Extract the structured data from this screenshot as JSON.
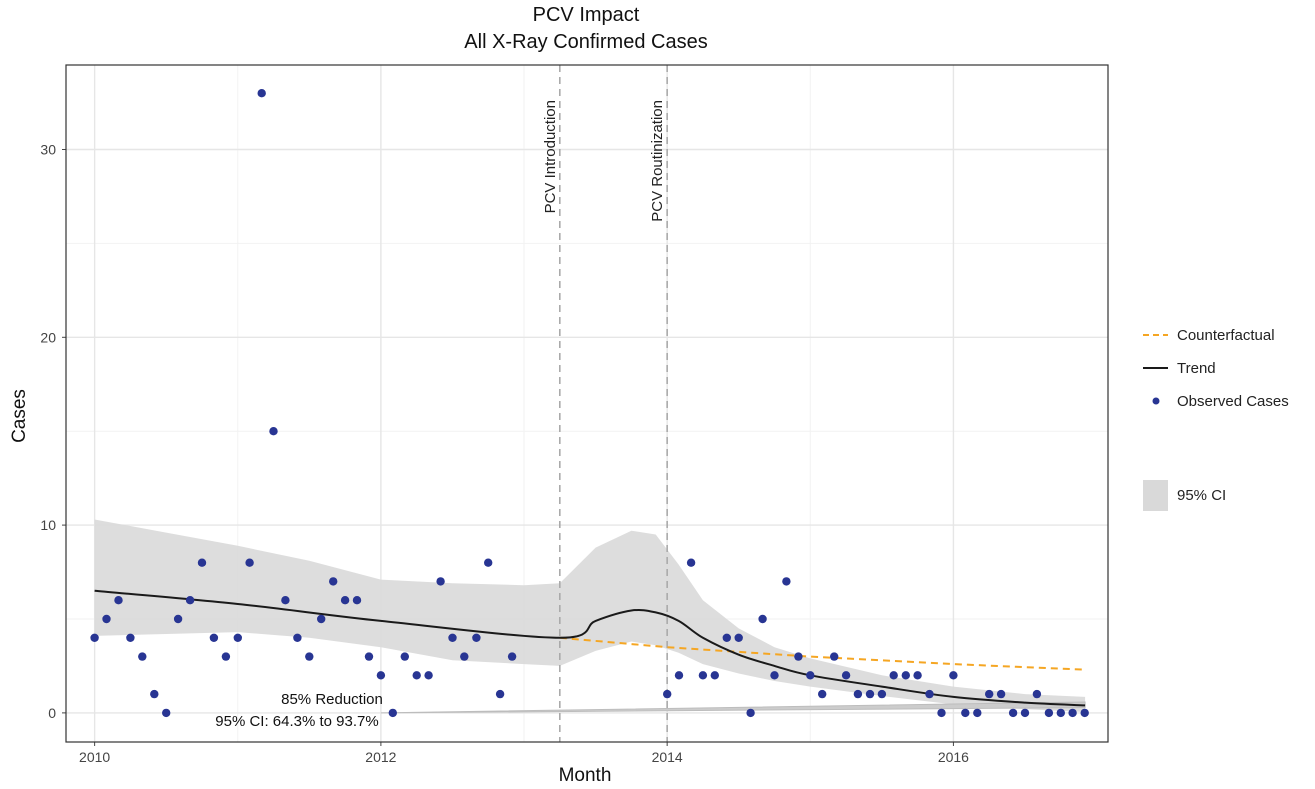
{
  "chart_data": {
    "type": "scatter",
    "title": "PCV Impact",
    "subtitle": "All X-Ray Confirmed Cases",
    "xlabel": "Month",
    "ylabel": "Cases",
    "xlim": [
      2009.8,
      2017.08
    ],
    "ylim": [
      -1.55,
      34.5
    ],
    "x_ticks": [
      2010,
      2012,
      2014,
      2016
    ],
    "y_ticks": [
      0,
      10,
      20,
      30
    ],
    "grid": true,
    "legend_position": "right",
    "vertical_lines": [
      {
        "x": 2013.25,
        "label": "PCV Introduction"
      },
      {
        "x": 2014.0,
        "label": "PCV Routinization"
      }
    ],
    "annotation": {
      "line1": "85% Reduction",
      "line2": "95% CI: 64.3% to 93.7%"
    },
    "legend": {
      "counterfactual": "Counterfactual",
      "trend": "Trend",
      "observed": "Observed Cases",
      "ci": "95% CI"
    },
    "colors": {
      "observed": "#283593",
      "trend": "#1a1a1a",
      "counterfactual": "#f5a623",
      "ci_band": "#d9d9d9",
      "vline": "#aaaaaa",
      "reduction_band": "#cccccc"
    },
    "observed_cases": [
      {
        "x": 2010.0,
        "y": 4
      },
      {
        "x": 2010.083,
        "y": 5
      },
      {
        "x": 2010.167,
        "y": 6
      },
      {
        "x": 2010.25,
        "y": 4
      },
      {
        "x": 2010.333,
        "y": 3
      },
      {
        "x": 2010.417,
        "y": 1
      },
      {
        "x": 2010.5,
        "y": 0
      },
      {
        "x": 2010.583,
        "y": 5
      },
      {
        "x": 2010.667,
        "y": 6
      },
      {
        "x": 2010.75,
        "y": 8
      },
      {
        "x": 2010.833,
        "y": 4
      },
      {
        "x": 2010.917,
        "y": 3
      },
      {
        "x": 2011.0,
        "y": 4
      },
      {
        "x": 2011.083,
        "y": 8
      },
      {
        "x": 2011.167,
        "y": 33
      },
      {
        "x": 2011.25,
        "y": 15
      },
      {
        "x": 2011.333,
        "y": 6
      },
      {
        "x": 2011.417,
        "y": 4
      },
      {
        "x": 2011.5,
        "y": 3
      },
      {
        "x": 2011.583,
        "y": 5
      },
      {
        "x": 2011.667,
        "y": 7
      },
      {
        "x": 2011.75,
        "y": 6
      },
      {
        "x": 2011.833,
        "y": 6
      },
      {
        "x": 2011.917,
        "y": 3
      },
      {
        "x": 2012.0,
        "y": 2
      },
      {
        "x": 2012.083,
        "y": 0
      },
      {
        "x": 2012.167,
        "y": 3
      },
      {
        "x": 2012.25,
        "y": 2
      },
      {
        "x": 2012.333,
        "y": 2
      },
      {
        "x": 2012.417,
        "y": 7
      },
      {
        "x": 2012.5,
        "y": 4
      },
      {
        "x": 2012.583,
        "y": 3
      },
      {
        "x": 2012.667,
        "y": 4
      },
      {
        "x": 2012.75,
        "y": 8
      },
      {
        "x": 2012.833,
        "y": 1
      },
      {
        "x": 2012.917,
        "y": 3
      },
      {
        "x": 2014.0,
        "y": 1
      },
      {
        "x": 2014.083,
        "y": 2
      },
      {
        "x": 2014.167,
        "y": 8
      },
      {
        "x": 2014.25,
        "y": 2
      },
      {
        "x": 2014.333,
        "y": 2
      },
      {
        "x": 2014.417,
        "y": 4
      },
      {
        "x": 2014.5,
        "y": 4
      },
      {
        "x": 2014.583,
        "y": 0
      },
      {
        "x": 2014.667,
        "y": 5
      },
      {
        "x": 2014.75,
        "y": 2
      },
      {
        "x": 2014.833,
        "y": 7
      },
      {
        "x": 2014.917,
        "y": 3
      },
      {
        "x": 2015.0,
        "y": 2
      },
      {
        "x": 2015.083,
        "y": 1
      },
      {
        "x": 2015.167,
        "y": 3
      },
      {
        "x": 2015.25,
        "y": 2
      },
      {
        "x": 2015.333,
        "y": 1
      },
      {
        "x": 2015.417,
        "y": 1
      },
      {
        "x": 2015.5,
        "y": 1
      },
      {
        "x": 2015.583,
        "y": 2
      },
      {
        "x": 2015.667,
        "y": 2
      },
      {
        "x": 2015.75,
        "y": 2
      },
      {
        "x": 2015.833,
        "y": 1
      },
      {
        "x": 2015.917,
        "y": 0
      },
      {
        "x": 2016.0,
        "y": 2
      },
      {
        "x": 2016.083,
        "y": 0
      },
      {
        "x": 2016.167,
        "y": 0
      },
      {
        "x": 2016.25,
        "y": 1
      },
      {
        "x": 2016.333,
        "y": 1
      },
      {
        "x": 2016.417,
        "y": 0
      },
      {
        "x": 2016.5,
        "y": 0
      },
      {
        "x": 2016.583,
        "y": 1
      },
      {
        "x": 2016.667,
        "y": 0
      },
      {
        "x": 2016.75,
        "y": 0
      },
      {
        "x": 2016.833,
        "y": 0
      },
      {
        "x": 2016.917,
        "y": 0
      }
    ],
    "trend": [
      {
        "x": 2010.0,
        "y": 6.5
      },
      {
        "x": 2011.0,
        "y": 5.8
      },
      {
        "x": 2012.0,
        "y": 4.9
      },
      {
        "x": 2013.25,
        "y": 4.0
      },
      {
        "x": 2013.5,
        "y": 4.9
      },
      {
        "x": 2013.75,
        "y": 5.45
      },
      {
        "x": 2013.92,
        "y": 5.35
      },
      {
        "x": 2014.08,
        "y": 4.9
      },
      {
        "x": 2014.25,
        "y": 4.0
      },
      {
        "x": 2014.5,
        "y": 3.1
      },
      {
        "x": 2014.75,
        "y": 2.5
      },
      {
        "x": 2015.0,
        "y": 2.0
      },
      {
        "x": 2015.5,
        "y": 1.4
      },
      {
        "x": 2016.0,
        "y": 0.85
      },
      {
        "x": 2016.5,
        "y": 0.55
      },
      {
        "x": 2016.92,
        "y": 0.4
      }
    ],
    "counterfactual": [
      {
        "x": 2013.25,
        "y": 4.0
      },
      {
        "x": 2014.0,
        "y": 3.5
      },
      {
        "x": 2015.0,
        "y": 3.0
      },
      {
        "x": 2016.0,
        "y": 2.6
      },
      {
        "x": 2016.92,
        "y": 2.3
      }
    ],
    "ci_band": [
      {
        "x": 2010.0,
        "lo": 4.1,
        "hi": 10.3
      },
      {
        "x": 2010.5,
        "lo": 4.2,
        "hi": 9.6
      },
      {
        "x": 2011.0,
        "lo": 4.3,
        "hi": 8.9
      },
      {
        "x": 2011.5,
        "lo": 4.0,
        "hi": 8.1
      },
      {
        "x": 2012.0,
        "lo": 3.5,
        "hi": 7.1
      },
      {
        "x": 2012.5,
        "lo": 2.8,
        "hi": 6.9
      },
      {
        "x": 2013.0,
        "lo": 2.6,
        "hi": 6.8
      },
      {
        "x": 2013.25,
        "lo": 2.5,
        "hi": 6.9
      },
      {
        "x": 2013.5,
        "lo": 3.3,
        "hi": 8.8
      },
      {
        "x": 2013.75,
        "lo": 3.8,
        "hi": 9.7
      },
      {
        "x": 2013.92,
        "lo": 3.6,
        "hi": 9.5
      },
      {
        "x": 2014.08,
        "lo": 3.2,
        "hi": 7.9
      },
      {
        "x": 2014.25,
        "lo": 2.6,
        "hi": 6.0
      },
      {
        "x": 2014.5,
        "lo": 2.1,
        "hi": 4.5
      },
      {
        "x": 2014.75,
        "lo": 1.7,
        "hi": 3.5
      },
      {
        "x": 2015.0,
        "lo": 1.4,
        "hi": 2.9
      },
      {
        "x": 2015.5,
        "lo": 0.9,
        "hi": 2.0
      },
      {
        "x": 2016.0,
        "lo": 0.45,
        "hi": 1.4
      },
      {
        "x": 2016.5,
        "lo": 0.2,
        "hi": 1.0
      },
      {
        "x": 2016.92,
        "lo": 0.05,
        "hi": 0.85
      }
    ],
    "reduction_band": [
      {
        "x": 2012.0,
        "lo": 0.0,
        "hi": 0.0
      },
      {
        "x": 2016.92,
        "lo": 0.28,
        "hi": 0.58
      }
    ]
  }
}
